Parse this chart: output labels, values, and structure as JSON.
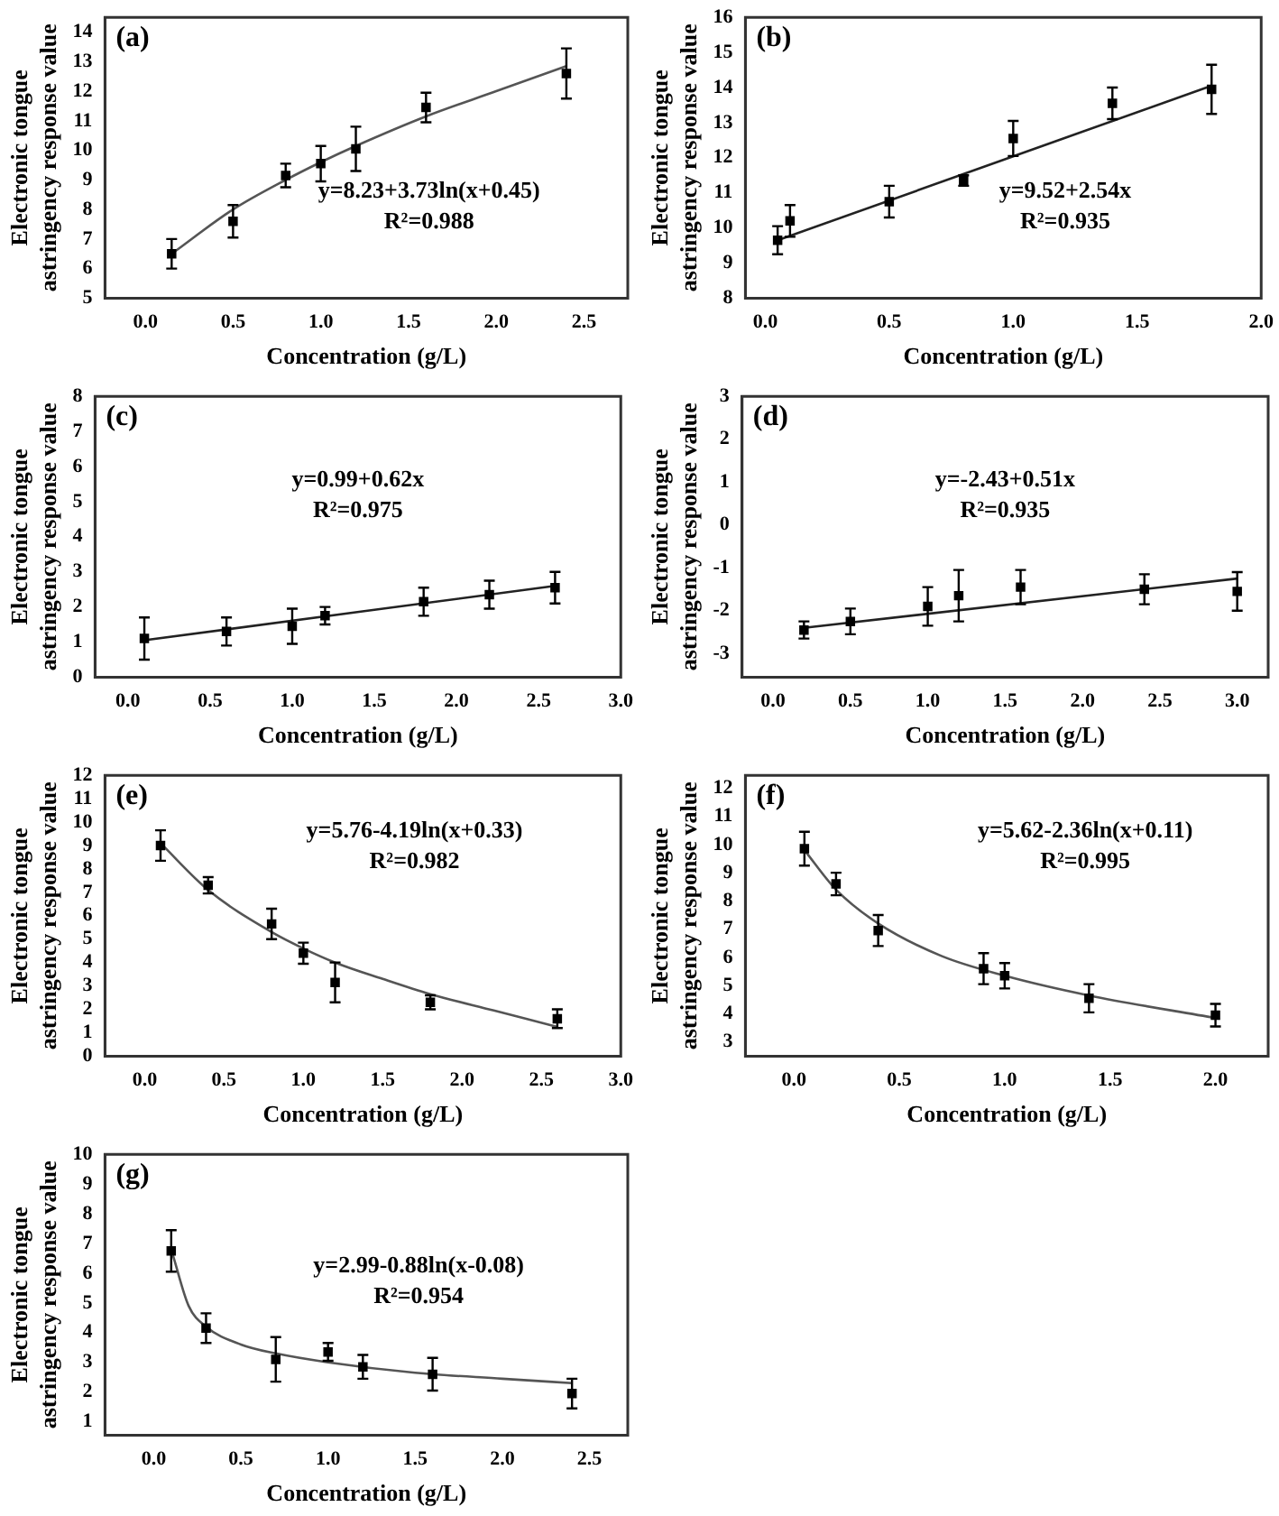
{
  "chart_data": [
    {
      "type": "scatter",
      "title": "(a)",
      "xlabel": "Concentration (g/L)",
      "ylabel": "Electronic tongue\nastringency response value",
      "annotations": [
        "y=8.23+3.73ln(x+0.45)",
        "R²=0.988"
      ],
      "xlim": [
        -0.23,
        2.75
      ],
      "xticks": [
        {
          "value": 0,
          "label": "0.0"
        },
        0.5,
        {
          "value": 1,
          "label": "1.0"
        },
        1.5,
        {
          "value": 2,
          "label": "2.0"
        },
        2.5
      ],
      "ylim": [
        5,
        14.5
      ],
      "yticks": [
        5,
        6,
        7,
        8,
        9,
        10,
        11,
        12,
        13,
        14
      ],
      "grid": false,
      "legend": false,
      "series": [
        {
          "type": "scatter",
          "color": "#000000",
          "marker": "square",
          "x": [
            0.15,
            0.5,
            0.8,
            1.0,
            1.2,
            1.6,
            2.4
          ],
          "values": [
            6.5,
            7.6,
            9.15,
            9.55,
            10.05,
            11.45,
            12.6
          ],
          "errors": [
            0.5,
            0.55,
            0.4,
            0.6,
            0.75,
            0.5,
            0.85
          ]
        },
        {
          "type": "line",
          "color": "#555555",
          "x": [
            0.15,
            0.5,
            0.8,
            1.0,
            1.2,
            1.6,
            2.0,
            2.4
          ],
          "values": [
            6.5,
            8.0,
            9.0,
            9.6,
            10.15,
            11.15,
            12.0,
            12.85
          ]
        }
      ]
    },
    {
      "type": "scatter",
      "title": "(b)",
      "xlabel": "Concentration (g/L)",
      "ylabel": "Electronic tongue\nastringency response value",
      "annotations": [
        "y=9.52+2.54x",
        "R²=0.935"
      ],
      "xlim": [
        -0.08,
        2.0
      ],
      "xticks": [
        {
          "value": 0,
          "label": "0.0"
        },
        0.5,
        {
          "value": 1,
          "label": "1.0"
        },
        1.5,
        {
          "value": 2,
          "label": "2.0"
        }
      ],
      "ylim": [
        8,
        16
      ],
      "yticks": [
        8,
        9,
        10,
        11,
        12,
        13,
        14,
        15,
        16
      ],
      "grid": false,
      "legend": false,
      "series": [
        {
          "type": "scatter",
          "color": "#000000",
          "marker": "square",
          "x": [
            0.05,
            0.1,
            0.5,
            0.8,
            1.0,
            1.4,
            1.8
          ],
          "values": [
            9.65,
            10.2,
            10.75,
            11.35,
            12.55,
            13.55,
            13.95
          ],
          "errors": [
            0.4,
            0.45,
            0.45,
            0.15,
            0.5,
            0.45,
            0.7
          ]
        },
        {
          "type": "line",
          "color": "#222222",
          "x": [
            0.05,
            1.8
          ],
          "values": [
            9.65,
            14.05
          ]
        }
      ]
    },
    {
      "type": "scatter",
      "title": "(c)",
      "xlabel": "Concentration (g/L)",
      "ylabel": "Electronic tongue\nastringency response value",
      "annotations": [
        "y=0.99+0.62x",
        "R²=0.975"
      ],
      "xlim": [
        -0.2,
        3.0
      ],
      "xticks": [
        {
          "value": 0,
          "label": "0.0"
        },
        0.5,
        {
          "value": 1,
          "label": "1.0"
        },
        1.5,
        {
          "value": 2,
          "label": "2.0"
        },
        2.5,
        {
          "value": 3,
          "label": "3.0"
        }
      ],
      "ylim": [
        0,
        8
      ],
      "yticks": [
        0,
        1,
        2,
        3,
        4,
        5,
        6,
        7,
        8
      ],
      "grid": false,
      "legend": false,
      "series": [
        {
          "type": "scatter",
          "color": "#000000",
          "marker": "square",
          "x": [
            0.1,
            0.6,
            1.0,
            1.2,
            1.8,
            2.2,
            2.6
          ],
          "values": [
            1.1,
            1.3,
            1.45,
            1.75,
            2.15,
            2.35,
            2.55
          ],
          "errors": [
            0.6,
            0.4,
            0.5,
            0.25,
            0.4,
            0.4,
            0.45
          ]
        },
        {
          "type": "line",
          "color": "#222222",
          "x": [
            0.1,
            2.6
          ],
          "values": [
            1.05,
            2.6
          ]
        }
      ]
    },
    {
      "type": "scatter",
      "title": "(d)",
      "xlabel": "Concentration (g/L)",
      "ylabel": "Electronic tongue\nastringency response value",
      "annotations": [
        "y=-2.43+0.51x",
        "R²=0.935"
      ],
      "xlim": [
        -0.2,
        3.2
      ],
      "xticks": [
        {
          "value": 0,
          "label": "0.0"
        },
        0.5,
        {
          "value": 1,
          "label": "1.0"
        },
        1.5,
        {
          "value": 2,
          "label": "2.0"
        },
        2.5,
        {
          "value": 3,
          "label": "3.0"
        }
      ],
      "ylim": [
        -3.55,
        3
      ],
      "yticks": [
        -3,
        -2,
        -1,
        0,
        1,
        2,
        3
      ],
      "grid": false,
      "legend": false,
      "series": [
        {
          "type": "scatter",
          "color": "#000000",
          "marker": "square",
          "x": [
            0.2,
            0.5,
            1.0,
            1.2,
            1.6,
            2.4,
            3.0
          ],
          "values": [
            -2.45,
            -2.25,
            -1.9,
            -1.65,
            -1.45,
            -1.5,
            -1.55
          ],
          "errors": [
            0.2,
            0.3,
            0.45,
            0.6,
            0.4,
            0.35,
            0.45
          ]
        },
        {
          "type": "line",
          "color": "#222222",
          "x": [
            0.2,
            3.0
          ],
          "values": [
            -2.4,
            -1.25
          ]
        }
      ]
    },
    {
      "type": "scatter",
      "title": "(e)",
      "xlabel": "Concentration (g/L)",
      "ylabel": "Electronic tongue\nastringency response value",
      "annotations": [
        "y=5.76-4.19ln(x+0.33)",
        "R²=0.982"
      ],
      "xlim": [
        -0.25,
        3.0
      ],
      "xticks": [
        {
          "value": 0,
          "label": "0.0"
        },
        0.5,
        {
          "value": 1,
          "label": "1.0"
        },
        1.5,
        {
          "value": 2,
          "label": "2.0"
        },
        2.5,
        {
          "value": 3,
          "label": "3.0"
        }
      ],
      "ylim": [
        0,
        12
      ],
      "yticks": [
        0,
        1,
        2,
        3,
        4,
        5,
        6,
        7,
        8,
        9,
        10,
        11,
        12
      ],
      "grid": false,
      "legend": false,
      "series": [
        {
          "type": "scatter",
          "color": "#000000",
          "marker": "square",
          "x": [
            0.1,
            0.4,
            0.8,
            1.0,
            1.2,
            1.8,
            2.6
          ],
          "values": [
            9.0,
            7.3,
            5.65,
            4.4,
            3.15,
            2.3,
            1.6
          ],
          "errors": [
            0.65,
            0.35,
            0.65,
            0.45,
            0.85,
            0.3,
            0.4
          ]
        },
        {
          "type": "line",
          "color": "#555555",
          "x": [
            0.1,
            0.4,
            0.8,
            1.0,
            1.2,
            1.5,
            1.8,
            2.2,
            2.6
          ],
          "values": [
            9.1,
            7.1,
            5.3,
            4.6,
            4.0,
            3.3,
            2.65,
            1.95,
            1.25
          ]
        }
      ]
    },
    {
      "type": "scatter",
      "title": "(f)",
      "xlabel": "Concentration (g/L)",
      "ylabel": "Electronic tongue\nastringency response value",
      "annotations": [
        "y=5.62-2.36ln(x+0.11)",
        "R²=0.995"
      ],
      "xlim": [
        -0.23,
        2.25
      ],
      "xticks": [
        {
          "value": 0,
          "label": "0.0"
        },
        0.5,
        {
          "value": 1,
          "label": "1.0"
        },
        1.5,
        {
          "value": 2,
          "label": "2.0"
        }
      ],
      "ylim": [
        2.5,
        12.45
      ],
      "yticks": [
        3,
        4,
        5,
        6,
        7,
        8,
        9,
        10,
        11,
        12
      ],
      "grid": false,
      "legend": false,
      "series": [
        {
          "type": "scatter",
          "color": "#000000",
          "marker": "square",
          "x": [
            0.05,
            0.2,
            0.4,
            0.9,
            1.0,
            1.4,
            2.0
          ],
          "values": [
            9.85,
            8.6,
            6.95,
            5.6,
            5.35,
            4.55,
            3.95
          ],
          "errors": [
            0.6,
            0.4,
            0.55,
            0.55,
            0.45,
            0.5,
            0.4
          ]
        },
        {
          "type": "line",
          "color": "#555555",
          "x": [
            0.05,
            0.2,
            0.4,
            0.7,
            1.0,
            1.4,
            2.0
          ],
          "values": [
            9.8,
            8.4,
            7.2,
            6.05,
            5.35,
            4.65,
            3.85
          ]
        }
      ]
    },
    {
      "type": "scatter",
      "title": "(g)",
      "xlabel": "Concentration (g/L)",
      "ylabel": "Electronic tongue\nastringency response value",
      "annotations": [
        "y=2.99-0.88ln(x-0.08)",
        "R²=0.954"
      ],
      "xlim": [
        -0.28,
        2.72
      ],
      "xticks": [
        {
          "value": 0,
          "label": "0.0"
        },
        0.5,
        {
          "value": 1,
          "label": "1.0"
        },
        1.5,
        {
          "value": 2,
          "label": "2.0"
        },
        2.5
      ],
      "ylim": [
        0.55,
        10
      ],
      "yticks": [
        1,
        2,
        3,
        4,
        5,
        6,
        7,
        8,
        9,
        10
      ],
      "grid": false,
      "legend": false,
      "series": [
        {
          "type": "scatter",
          "color": "#000000",
          "marker": "square",
          "x": [
            0.1,
            0.3,
            0.7,
            1.0,
            1.2,
            1.6,
            2.4
          ],
          "values": [
            6.75,
            4.15,
            3.1,
            3.35,
            2.85,
            2.6,
            1.95
          ],
          "errors": [
            0.7,
            0.5,
            0.75,
            0.3,
            0.4,
            0.55,
            0.5
          ]
        },
        {
          "type": "line",
          "color": "#555555",
          "x": [
            0.11,
            0.2,
            0.3,
            0.5,
            0.7,
            1.0,
            1.5,
            2.0,
            2.4
          ],
          "values": [
            6.6,
            4.9,
            4.2,
            3.6,
            3.3,
            3.0,
            2.65,
            2.45,
            2.3
          ]
        }
      ]
    }
  ]
}
